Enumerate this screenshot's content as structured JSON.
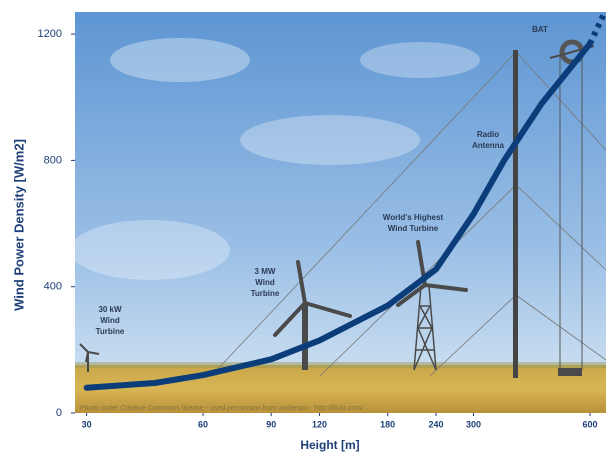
{
  "chart_data": {
    "type": "line",
    "x_label": "Height [m]",
    "y_label": "Wind Power Density [W/m2]",
    "xscale": "log",
    "xlim": [
      28,
      660
    ],
    "ylim": [
      0,
      1270
    ],
    "xticks": [
      30,
      60,
      90,
      120,
      180,
      240,
      300,
      600
    ],
    "yticks": [
      0,
      400,
      800,
      1200
    ],
    "series": [
      {
        "color": "#0b3d7a",
        "x": [
          30,
          45,
          60,
          90,
          120,
          180,
          240,
          300,
          360,
          450,
          600
        ],
        "values": [
          80,
          95,
          120,
          170,
          230,
          340,
          455,
          630,
          800,
          980,
          1170
        ]
      },
      {
        "color": "#0b3d7a",
        "dashed": true,
        "x": [
          600,
          650
        ],
        "values": [
          1170,
          1260
        ]
      }
    ],
    "annotations": [
      {
        "lines": [
          "30 kW",
          "Wind",
          "Turbine"
        ]
      },
      {
        "lines": [
          "3 MW",
          "Wind",
          "Turbine"
        ]
      },
      {
        "lines": [
          "World's Highest",
          "Wind Turbine"
        ]
      },
      {
        "lines": [
          "Radio",
          "Antenna"
        ]
      },
      {
        "lines": [
          "BAT"
        ]
      }
    ],
    "credit": "Photo under Creative Commons license - used permission from anderson - http://flickr.com/"
  }
}
